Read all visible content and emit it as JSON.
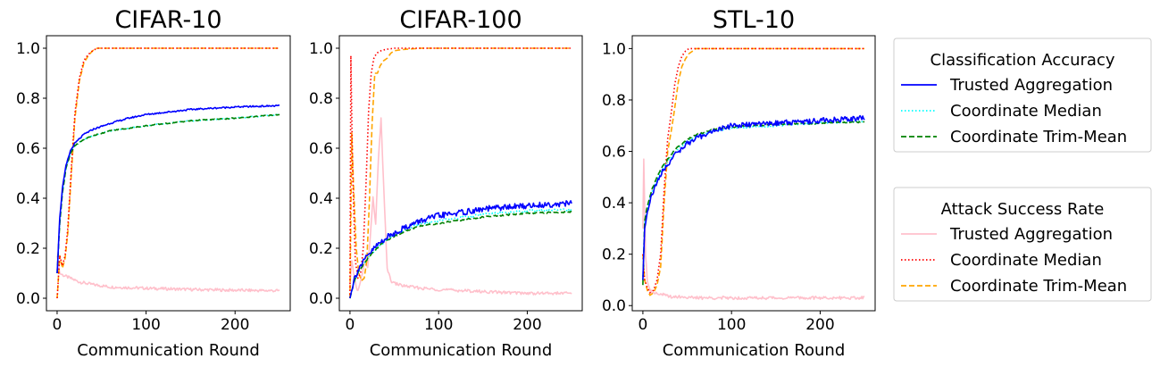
{
  "colors": {
    "trusted_acc": "#0000ff",
    "median_acc": "#00ffff",
    "trim_acc": "#008000",
    "trusted_asr": "#ffc0cb",
    "median_asr": "#ff0000",
    "trim_asr": "#ffa500"
  },
  "legends": [
    {
      "title": "Classification Accuracy",
      "entries": [
        {
          "label": "Trusted Aggregation",
          "color": "#0000ff",
          "dash": "solid"
        },
        {
          "label": "Coordinate Median",
          "color": "#00ffff",
          "dash": "dotted"
        },
        {
          "label": "Coordinate Trim-Mean",
          "color": "#008000",
          "dash": "dashed"
        }
      ]
    },
    {
      "title": "Attack Success Rate",
      "entries": [
        {
          "label": "Trusted Aggregation",
          "color": "#ffc0cb",
          "dash": "solid"
        },
        {
          "label": "Coordinate Median",
          "color": "#ff0000",
          "dash": "dotted"
        },
        {
          "label": "Coordinate Trim-Mean",
          "color": "#ffa500",
          "dash": "dashed"
        }
      ]
    }
  ],
  "chart_data": [
    {
      "type": "line",
      "title": "CIFAR-10",
      "xlabel": "Communication Round",
      "ylabel": "",
      "xlim": [
        -12,
        262
      ],
      "ylim": [
        -0.05,
        1.05
      ],
      "xticks": [
        0,
        100,
        200
      ],
      "yticks": [
        "0.0",
        "0.2",
        "0.4",
        "0.6",
        "0.8",
        "1.0"
      ],
      "series": [
        {
          "name": "Trusted Aggregation (Attack Success Rate)",
          "color": "#ffc0cb",
          "dash": "solid",
          "noise": 0.006,
          "x": [
            0,
            3,
            8,
            15,
            25,
            40,
            60,
            100,
            150,
            200,
            250
          ],
          "y": [
            0.17,
            0.1,
            0.09,
            0.08,
            0.065,
            0.055,
            0.045,
            0.04,
            0.035,
            0.032,
            0.03
          ]
        },
        {
          "name": "Coordinate Trim-Mean (Attack Success Rate)",
          "color": "#ffa500",
          "dash": "dashed",
          "noise": 0,
          "x": [
            0,
            3,
            6,
            9,
            12,
            16,
            20,
            25,
            30,
            35,
            40,
            45,
            50,
            100,
            250
          ],
          "y": [
            0.0,
            0.17,
            0.12,
            0.16,
            0.26,
            0.5,
            0.72,
            0.87,
            0.94,
            0.97,
            0.99,
            1.0,
            1.0,
            1.0,
            1.0
          ]
        },
        {
          "name": "Coordinate Median (Attack Success Rate)",
          "color": "#ff0000",
          "dash": "dotted",
          "noise": 0,
          "x": [
            0,
            3,
            6,
            9,
            12,
            16,
            20,
            25,
            30,
            35,
            40,
            45,
            50,
            100,
            250
          ],
          "y": [
            0.0,
            0.17,
            0.13,
            0.17,
            0.28,
            0.52,
            0.74,
            0.88,
            0.95,
            0.975,
            0.99,
            1.0,
            1.0,
            1.0,
            1.0
          ]
        },
        {
          "name": "Coordinate Median (Classification Accuracy)",
          "color": "#00ffff",
          "dash": "dotted",
          "noise": 0.002,
          "x": [
            0,
            3,
            6,
            10,
            15,
            20,
            30,
            40,
            60,
            80,
            100,
            150,
            200,
            250
          ],
          "y": [
            0.1,
            0.3,
            0.42,
            0.52,
            0.58,
            0.61,
            0.635,
            0.65,
            0.67,
            0.68,
            0.69,
            0.71,
            0.72,
            0.735
          ]
        },
        {
          "name": "Coordinate Trim-Mean (Classification Accuracy)",
          "color": "#008000",
          "dash": "dashed",
          "noise": 0.002,
          "x": [
            0,
            3,
            6,
            10,
            15,
            20,
            30,
            40,
            60,
            80,
            100,
            150,
            200,
            250
          ],
          "y": [
            0.1,
            0.3,
            0.42,
            0.52,
            0.58,
            0.61,
            0.635,
            0.65,
            0.67,
            0.68,
            0.69,
            0.71,
            0.72,
            0.735
          ]
        },
        {
          "name": "Trusted Aggregation (Classification Accuracy)",
          "color": "#0000ff",
          "dash": "solid",
          "noise": 0.003,
          "x": [
            0,
            3,
            6,
            10,
            15,
            20,
            30,
            40,
            60,
            80,
            100,
            150,
            200,
            250
          ],
          "y": [
            0.1,
            0.32,
            0.44,
            0.53,
            0.59,
            0.62,
            0.655,
            0.675,
            0.7,
            0.72,
            0.735,
            0.755,
            0.765,
            0.77
          ]
        }
      ]
    },
    {
      "type": "line",
      "title": "CIFAR-100",
      "xlabel": "Communication Round",
      "ylabel": "",
      "xlim": [
        -12,
        262
      ],
      "ylim": [
        -0.05,
        1.05
      ],
      "xticks": [
        0,
        100,
        200
      ],
      "yticks": [
        "0.0",
        "0.2",
        "0.4",
        "0.6",
        "0.8",
        "1.0"
      ],
      "series": [
        {
          "name": "Trusted Aggregation (Attack Success Rate)",
          "color": "#ffc0cb",
          "dash": "solid",
          "noise": 0.006,
          "x": [
            0,
            2,
            5,
            8,
            11,
            14,
            17,
            20,
            23,
            26,
            29,
            32,
            35,
            38,
            42,
            46,
            50,
            60,
            80,
            100,
            130,
            160,
            200,
            250
          ],
          "y": [
            0.05,
            0.15,
            0.08,
            0.03,
            0.05,
            0.1,
            0.15,
            0.12,
            0.25,
            0.4,
            0.3,
            0.55,
            0.72,
            0.45,
            0.12,
            0.07,
            0.06,
            0.05,
            0.04,
            0.035,
            0.03,
            0.025,
            0.02,
            0.02
          ]
        },
        {
          "name": "Coordinate Trim-Mean (Attack Success Rate)",
          "color": "#ffa500",
          "dash": "dashed",
          "noise": 0,
          "x": [
            0,
            2,
            4,
            7,
            10,
            13,
            16,
            19,
            22,
            25,
            28,
            31,
            34,
            38,
            42,
            46,
            50,
            60,
            80,
            100,
            250
          ],
          "y": [
            0.0,
            0.66,
            0.45,
            0.2,
            0.1,
            0.07,
            0.08,
            0.15,
            0.4,
            0.7,
            0.9,
            0.9,
            0.93,
            0.95,
            0.96,
            0.98,
            0.99,
            0.995,
            1.0,
            1.0,
            1.0
          ]
        },
        {
          "name": "Coordinate Median (Attack Success Rate)",
          "color": "#ff0000",
          "dash": "dotted",
          "noise": 0,
          "x": [
            0,
            1,
            3,
            6,
            9,
            12,
            15,
            18,
            21,
            24,
            27,
            30,
            35,
            40,
            50,
            60,
            80,
            100,
            250
          ],
          "y": [
            0.0,
            0.97,
            0.5,
            0.15,
            0.08,
            0.1,
            0.2,
            0.45,
            0.75,
            0.9,
            0.96,
            0.98,
            0.99,
            0.995,
            1.0,
            1.0,
            1.0,
            1.0,
            1.0
          ]
        },
        {
          "name": "Coordinate Median (Classification Accuracy)",
          "color": "#00ffff",
          "dash": "dotted",
          "noise": 0.004,
          "x": [
            0,
            5,
            10,
            20,
            30,
            40,
            60,
            80,
            100,
            150,
            200,
            250
          ],
          "y": [
            0.0,
            0.07,
            0.11,
            0.16,
            0.2,
            0.23,
            0.27,
            0.3,
            0.31,
            0.335,
            0.35,
            0.355
          ]
        },
        {
          "name": "Coordinate Trim-Mean (Classification Accuracy)",
          "color": "#008000",
          "dash": "dashed",
          "noise": 0.003,
          "x": [
            0,
            5,
            10,
            20,
            30,
            40,
            60,
            80,
            100,
            150,
            200,
            250
          ],
          "y": [
            0.0,
            0.07,
            0.11,
            0.16,
            0.2,
            0.23,
            0.265,
            0.29,
            0.3,
            0.325,
            0.34,
            0.345
          ]
        },
        {
          "name": "Trusted Aggregation (Classification Accuracy)",
          "color": "#0000ff",
          "dash": "solid",
          "noise": 0.012,
          "x": [
            0,
            5,
            10,
            20,
            30,
            40,
            60,
            80,
            100,
            130,
            160,
            200,
            250
          ],
          "y": [
            0.0,
            0.08,
            0.12,
            0.17,
            0.21,
            0.24,
            0.28,
            0.31,
            0.33,
            0.345,
            0.36,
            0.37,
            0.38
          ]
        }
      ]
    },
    {
      "type": "line",
      "title": "STL-10",
      "xlabel": "Communication Round",
      "ylabel": "",
      "xlim": [
        -12,
        262
      ],
      "ylim": [
        -0.02,
        1.05
      ],
      "xticks": [
        0,
        100,
        200
      ],
      "yticks": [
        "0.0",
        "0.2",
        "0.4",
        "0.6",
        "0.8",
        "1.0"
      ],
      "series": [
        {
          "name": "Trusted Aggregation (Attack Success Rate)",
          "color": "#ffc0cb",
          "dash": "solid",
          "noise": 0.006,
          "x": [
            0,
            1,
            3,
            5,
            8,
            12,
            16,
            20,
            25,
            30,
            40,
            60,
            100,
            150,
            200,
            250
          ],
          "y": [
            0.3,
            0.57,
            0.2,
            0.1,
            0.06,
            0.05,
            0.05,
            0.045,
            0.04,
            0.035,
            0.035,
            0.03,
            0.03,
            0.03,
            0.03,
            0.03
          ]
        },
        {
          "name": "Coordinate Trim-Mean (Attack Success Rate)",
          "color": "#ffa500",
          "dash": "dashed",
          "noise": 0,
          "x": [
            0,
            2,
            5,
            8,
            12,
            16,
            20,
            24,
            28,
            32,
            36,
            40,
            44,
            48,
            52,
            60,
            80,
            250
          ],
          "y": [
            0.2,
            0.1,
            0.06,
            0.04,
            0.05,
            0.08,
            0.15,
            0.4,
            0.6,
            0.68,
            0.77,
            0.87,
            0.93,
            0.96,
            0.98,
            1.0,
            1.0,
            1.0
          ]
        },
        {
          "name": "Coordinate Median (Attack Success Rate)",
          "color": "#ff0000",
          "dash": "dotted",
          "noise": 0,
          "x": [
            0,
            2,
            5,
            8,
            12,
            16,
            20,
            24,
            28,
            32,
            36,
            40,
            44,
            48,
            52,
            60,
            80,
            250
          ],
          "y": [
            0.2,
            0.1,
            0.07,
            0.05,
            0.06,
            0.1,
            0.2,
            0.45,
            0.65,
            0.75,
            0.86,
            0.93,
            0.97,
            0.99,
            1.0,
            1.0,
            1.0,
            1.0
          ]
        },
        {
          "name": "Coordinate Median (Classification Accuracy)",
          "color": "#00ffff",
          "dash": "dotted",
          "noise": 0.003,
          "x": [
            0,
            2,
            5,
            10,
            15,
            20,
            30,
            40,
            50,
            60,
            80,
            100,
            150,
            200,
            250
          ],
          "y": [
            0.1,
            0.32,
            0.38,
            0.44,
            0.48,
            0.52,
            0.57,
            0.61,
            0.64,
            0.66,
            0.68,
            0.69,
            0.7,
            0.71,
            0.715
          ]
        },
        {
          "name": "Coordinate Trim-Mean (Classification Accuracy)",
          "color": "#008000",
          "dash": "dashed",
          "noise": 0.003,
          "x": [
            0,
            2,
            5,
            10,
            15,
            20,
            30,
            40,
            50,
            60,
            80,
            100,
            150,
            200,
            250
          ],
          "y": [
            0.08,
            0.33,
            0.39,
            0.45,
            0.49,
            0.53,
            0.58,
            0.62,
            0.645,
            0.665,
            0.685,
            0.695,
            0.705,
            0.71,
            0.715
          ]
        },
        {
          "name": "Trusted Aggregation (Classification Accuracy)",
          "color": "#0000ff",
          "dash": "solid",
          "noise": 0.01,
          "x": [
            0,
            2,
            5,
            10,
            15,
            20,
            30,
            40,
            50,
            60,
            80,
            100,
            150,
            200,
            250
          ],
          "y": [
            0.1,
            0.3,
            0.37,
            0.43,
            0.47,
            0.51,
            0.56,
            0.6,
            0.63,
            0.65,
            0.68,
            0.7,
            0.71,
            0.72,
            0.73
          ]
        }
      ]
    }
  ]
}
